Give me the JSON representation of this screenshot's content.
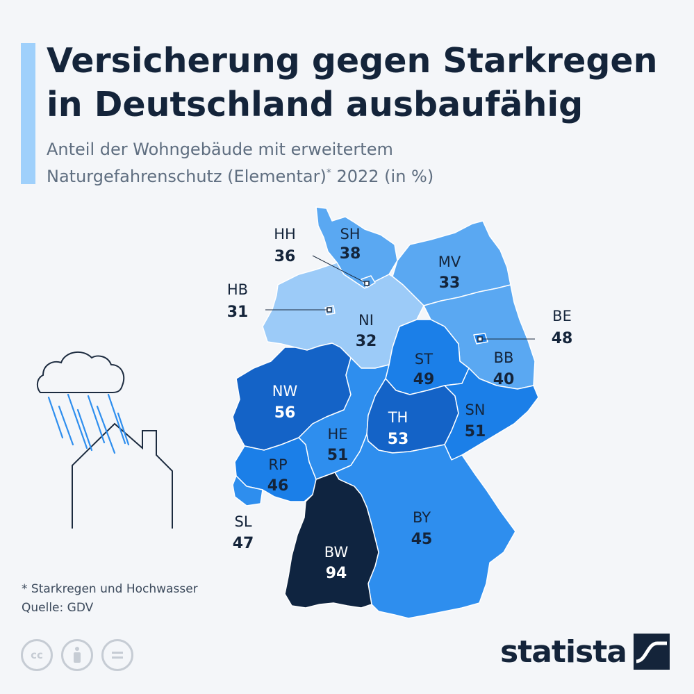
{
  "header": {
    "title_line1": "Versicherung gegen Starkregen",
    "title_line2": "in Deutschland ausbaufähig",
    "subtitle_line1": "Anteil der Wohngebäude mit erweitertem",
    "subtitle_line2a": "Naturgefahrenschutz (Elementar)",
    "subtitle_star": "*",
    "subtitle_line2b": " 2022 (in %)"
  },
  "colors": {
    "accent": "#9fd0fb",
    "scale_lightest": "#9ccbf8",
    "scale_light": "#5aa8f2",
    "scale_mid": "#2e8eee",
    "scale_strong": "#1b7fe8",
    "scale_dark": "#1463c7",
    "scale_darkest": "#0f2440"
  },
  "states": [
    {
      "code": "SH",
      "value": "38"
    },
    {
      "code": "HH",
      "value": "36"
    },
    {
      "code": "MV",
      "value": "33"
    },
    {
      "code": "HB",
      "value": "31"
    },
    {
      "code": "NI",
      "value": "32"
    },
    {
      "code": "BE",
      "value": "48"
    },
    {
      "code": "ST",
      "value": "49"
    },
    {
      "code": "BB",
      "value": "40"
    },
    {
      "code": "NW",
      "value": "56"
    },
    {
      "code": "SN",
      "value": "51"
    },
    {
      "code": "TH",
      "value": "53"
    },
    {
      "code": "HE",
      "value": "51"
    },
    {
      "code": "RP",
      "value": "46"
    },
    {
      "code": "BY",
      "value": "45"
    },
    {
      "code": "SL",
      "value": "47"
    },
    {
      "code": "BW",
      "value": "94"
    }
  ],
  "footnote": {
    "note": "* Starkregen und Hochwasser",
    "source": "Quelle: GDV"
  },
  "license_icons": [
    "cc-icon",
    "person-icon",
    "equals-icon"
  ],
  "cc_label": "cc",
  "brand": "statista"
}
